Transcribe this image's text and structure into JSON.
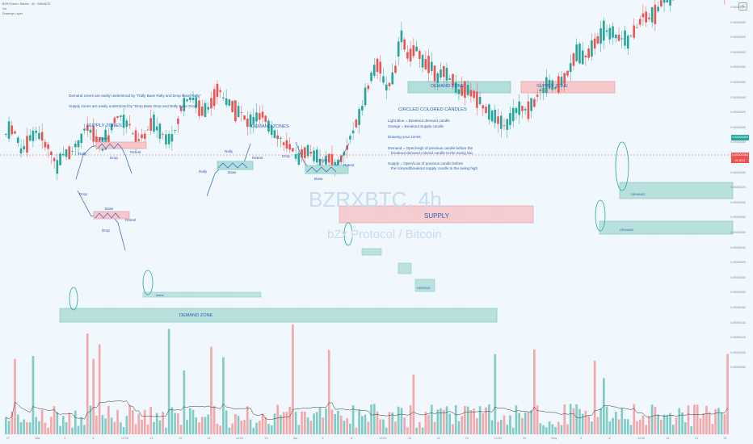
{
  "header": {
    "symbol_line": "BZRXToken / Bitcoin · 4h · BINANCE",
    "indicator_1": "Vol",
    "indicator_2": "Drawings Layer"
  },
  "settings_icon": "gear-icon",
  "watermark": {
    "symbol": "BZRXBTC, 4h",
    "pair": "bZx Protocol / Bitcoin"
  },
  "notes": {
    "line1": "Demand zones are easily understood by \"Rally Base Rally and Drop Base Rally\"",
    "line2": "Supply zones are easily understood by \"Drop Base Drop and Rally Base Drop\""
  },
  "sketch_headings": {
    "supply": "SUPPLY ZONES",
    "demand": "DEMAND ZONES"
  },
  "sketch_labels": {
    "rally": "Rally",
    "base": "Base",
    "drop": "Drop",
    "retest": "Retest"
  },
  "circled": {
    "title": "CIRCLED COLORED CANDLES",
    "light_blue": "Light Blue = Breakout demand candle",
    "orange": "Orange = Breakout Supply candle",
    "drawing_title": "Drawing your zones:",
    "demand_1": "Demand = Open/High of previous candle before the",
    "demand_2": "breakout demand colored candle to the swing low.",
    "supply_1": "Supply = Open/Low of previous candle before",
    "supply_2": "the colored/breakout supply candle to the swing high"
  },
  "legend_boxes": {
    "demand": "DEMAND ZONE",
    "supply": "SUPPLY ZONE"
  },
  "zones": {
    "big_demand": "DEMAND ZONE",
    "supply": "SUPPLY",
    "small_demand_1": "DEMAND",
    "small_demand_2": "DEMAND",
    "right_demand_1": "DEMAND",
    "right_demand_2": "DEMAND",
    "retest_box": "retest"
  },
  "price_axis": {
    "ticks": [
      "0.00000560",
      "0.00000540",
      "0.00000520",
      "0.00000500",
      "0.00000480",
      "0.00000460",
      "0.00000440",
      "0.00000420",
      "0.00000400",
      "0.00000380",
      "0.00000360",
      "0.00000340",
      "0.00000320",
      "0.00000300",
      "0.00000280",
      "0.00000260",
      "0.00000240",
      "0.00000220",
      "0.00000200",
      "0.00000180",
      "0.00000160",
      "0.00000140",
      "0.00000120",
      "0.00000100",
      "0.00000080"
    ],
    "last_price": "0.00000403",
    "last_price_2": "0.00000363",
    "countdown": "01:19:13"
  },
  "time_axis": {
    "ticks": [
      "27",
      "Mar",
      "4",
      "8",
      "12:00",
      "15",
      "19",
      "22",
      "12:00",
      "29",
      "Apr",
      "5",
      "8",
      "12:00",
      "15",
      "19",
      "22",
      "12:00",
      "29",
      "May",
      "5",
      "8",
      "12:00",
      "15",
      "19",
      "22"
    ]
  },
  "colors": {
    "up": "#26a69a",
    "down": "#ef5350",
    "demand_fill": "#b2dfdb",
    "supply_fill": "#f8c4c8",
    "text_blue": "#2f5fb4",
    "ma": "#333333"
  },
  "chart_data": {
    "type": "candlestick",
    "title": "BZRXBTC, 4h",
    "candles_approx": [
      [
        3.9,
        4.0,
        3.6,
        3.7
      ],
      [
        3.7,
        3.9,
        3.5,
        3.8
      ],
      [
        3.8,
        3.95,
        3.4,
        3.5
      ],
      [
        3.5,
        3.7,
        3.3,
        3.6
      ],
      [
        3.6,
        3.8,
        3.45,
        3.75
      ],
      [
        3.75,
        3.9,
        3.6,
        3.65
      ],
      [
        3.65,
        3.8,
        3.45,
        3.5
      ],
      [
        3.5,
        3.6,
        3.2,
        3.3
      ],
      [
        3.3,
        3.5,
        3.1,
        3.45
      ],
      [
        3.45,
        3.6,
        3.3,
        3.5
      ],
      [
        3.5,
        3.7,
        3.4,
        3.6
      ],
      [
        3.6,
        3.85,
        3.5,
        3.8
      ],
      [
        3.8,
        3.95,
        3.6,
        3.7
      ],
      [
        3.7,
        3.8,
        3.5,
        3.55
      ],
      [
        3.55,
        3.7,
        3.4,
        3.65
      ],
      [
        3.65,
        4.0,
        3.6,
        3.95
      ],
      [
        3.95,
        4.1,
        3.8,
        3.9
      ],
      [
        3.9,
        4.05,
        3.7,
        3.8
      ],
      [
        3.8,
        3.9,
        3.55,
        3.6
      ],
      [
        3.6,
        3.75,
        3.5,
        3.7
      ],
      [
        3.7,
        3.9,
        3.6,
        3.85
      ],
      [
        3.85,
        4.0,
        3.7,
        3.75
      ],
      [
        3.75,
        3.85,
        3.6,
        3.65
      ],
      [
        3.65,
        3.8,
        3.5,
        3.7
      ],
      [
        3.7,
        4.1,
        3.65,
        4.05
      ],
      [
        4.05,
        4.3,
        3.9,
        4.2
      ],
      [
        4.2,
        4.35,
        4.0,
        4.1
      ],
      [
        4.1,
        4.25,
        3.95,
        4.0
      ],
      [
        4.0,
        4.15,
        3.85,
        4.1
      ],
      [
        4.1,
        4.4,
        4.0,
        4.3
      ],
      [
        4.3,
        4.45,
        4.1,
        4.15
      ],
      [
        4.15,
        4.3,
        4.0,
        4.05
      ],
      [
        4.05,
        4.15,
        3.9,
        4.0
      ],
      [
        4.0,
        4.1,
        3.8,
        3.85
      ],
      [
        3.85,
        4.0,
        3.7,
        3.9
      ],
      [
        3.9,
        4.05,
        3.8,
        3.95
      ],
      [
        3.95,
        4.0,
        3.75,
        3.8
      ],
      [
        3.8,
        3.9,
        3.65,
        3.7
      ],
      [
        3.7,
        3.8,
        3.55,
        3.6
      ],
      [
        3.6,
        3.7,
        3.45,
        3.5
      ],
      [
        3.5,
        3.65,
        3.35,
        3.4
      ],
      [
        3.4,
        3.55,
        3.3,
        3.5
      ],
      [
        3.5,
        3.6,
        3.35,
        3.45
      ],
      [
        3.45,
        3.55,
        3.3,
        3.35
      ],
      [
        3.35,
        3.5,
        3.25,
        3.4
      ],
      [
        3.4,
        3.5,
        3.2,
        3.3
      ],
      [
        3.3,
        3.45,
        3.2,
        3.4
      ],
      [
        3.4,
        3.7,
        3.35,
        3.65
      ],
      [
        3.65,
        3.9,
        3.6,
        3.85
      ],
      [
        3.85,
        4.2,
        3.8,
        4.15
      ],
      [
        4.15,
        4.6,
        4.1,
        4.5
      ],
      [
        4.5,
        4.8,
        4.3,
        4.6
      ],
      [
        4.6,
        4.7,
        4.2,
        4.3
      ],
      [
        4.3,
        4.5,
        4.1,
        4.45
      ],
      [
        4.45,
        5.1,
        4.4,
        5.0
      ],
      [
        5.0,
        5.2,
        4.6,
        4.7
      ],
      [
        4.7,
        4.9,
        4.5,
        4.8
      ],
      [
        4.8,
        4.95,
        4.6,
        4.65
      ],
      [
        4.65,
        4.8,
        4.5,
        4.6
      ],
      [
        4.6,
        4.7,
        4.4,
        4.45
      ],
      [
        4.45,
        4.6,
        4.3,
        4.5
      ],
      [
        4.5,
        4.65,
        4.35,
        4.4
      ],
      [
        4.4,
        4.5,
        4.2,
        4.25
      ],
      [
        4.25,
        4.4,
        4.1,
        4.3
      ],
      [
        4.3,
        4.45,
        4.15,
        4.2
      ],
      [
        4.2,
        4.3,
        4.0,
        4.1
      ],
      [
        4.1,
        4.2,
        3.95,
        4.0
      ],
      [
        4.0,
        4.1,
        3.85,
        3.9
      ],
      [
        3.9,
        4.0,
        3.75,
        3.8
      ],
      [
        3.8,
        3.95,
        3.7,
        3.9
      ],
      [
        3.9,
        4.1,
        3.85,
        4.05
      ],
      [
        4.05,
        4.2,
        3.9,
        4.0
      ],
      [
        4.0,
        4.15,
        3.9,
        4.1
      ],
      [
        4.1,
        4.3,
        4.05,
        4.25
      ],
      [
        4.25,
        4.4,
        4.1,
        4.35
      ],
      [
        4.35,
        4.5,
        4.2,
        4.3
      ],
      [
        4.3,
        4.45,
        4.2,
        4.4
      ],
      [
        4.4,
        4.6,
        4.35,
        4.55
      ],
      [
        4.55,
        4.8,
        4.5,
        4.75
      ],
      [
        4.75,
        4.9,
        4.6,
        4.7
      ],
      [
        4.7,
        4.85,
        4.6,
        4.8
      ],
      [
        4.8,
        5.0,
        4.7,
        4.95
      ],
      [
        4.95,
        5.1,
        4.8,
        5.05
      ],
      [
        5.05,
        5.2,
        4.9,
        5.0
      ],
      [
        5.0,
        5.15,
        4.85,
        4.95
      ],
      [
        4.95,
        5.05,
        4.8,
        4.9
      ],
      [
        4.9,
        5.1,
        4.85,
        5.05
      ],
      [
        5.05,
        5.3,
        5.0,
        5.25
      ],
      [
        5.25,
        5.4,
        5.1,
        5.2
      ],
      [
        5.2,
        5.35,
        5.1,
        5.3
      ],
      [
        5.3,
        5.6,
        5.25,
        5.5
      ],
      [
        5.5,
        5.7,
        5.35,
        5.45
      ],
      [
        5.45,
        5.9,
        5.4,
        5.8
      ],
      [
        5.8,
        6.4,
        5.7,
        6.3
      ],
      [
        6.3,
        6.5,
        5.9,
        6.0
      ],
      [
        6.0,
        6.2,
        5.8,
        5.9
      ],
      [
        5.9,
        6.0,
        5.6,
        5.7
      ],
      [
        5.7,
        5.85,
        5.55,
        5.8
      ],
      [
        5.8,
        5.9,
        5.5,
        5.55
      ],
      [
        5.55,
        5.7,
        5.4,
        5.6
      ]
    ],
    "ylim": [
      8e-07,
      5.6e-06
    ]
  }
}
